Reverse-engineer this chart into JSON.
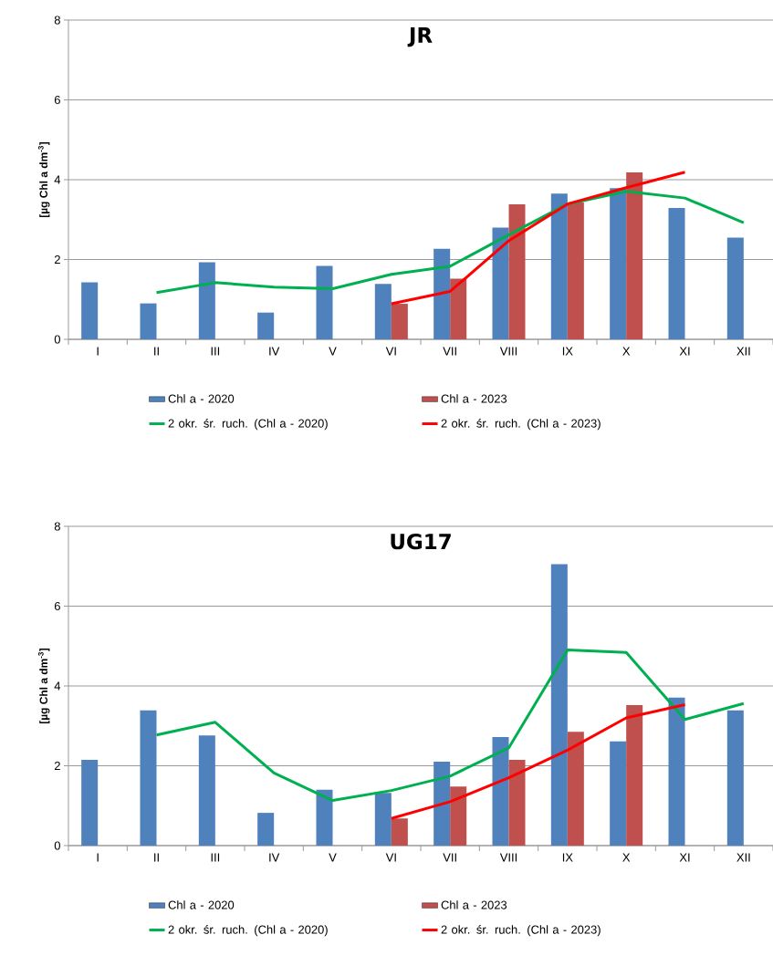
{
  "chart_data": [
    {
      "type": "bar",
      "title": "JR",
      "ylabel": "[µg Chl a dm$^{-3}$]",
      "categories": [
        "I",
        "II",
        "III",
        "IV",
        "V",
        "VI",
        "VII",
        "VIII",
        "IX",
        "X",
        "XI",
        "XII"
      ],
      "ylim": [
        0,
        8
      ],
      "yticks": [
        0,
        2,
        4,
        6,
        8
      ],
      "grid": "y",
      "legend": "bottom",
      "series": [
        {
          "name": "Chl a - 2020",
          "color": "#4f81bd",
          "values": [
            1.43,
            0.9,
            1.93,
            0.67,
            1.84,
            1.39,
            2.27,
            2.8,
            3.65,
            3.79,
            3.29,
            2.55
          ]
        },
        {
          "name": "Chl a - 2023",
          "color": "#c0504d",
          "values": [
            null,
            null,
            null,
            null,
            null,
            0.89,
            1.52,
            3.38,
            3.43,
            4.18,
            null,
            null
          ]
        },
        {
          "type": "line",
          "name": "2 okr. śr. ruch. (Chl a - 2020)",
          "color": "#00b050",
          "values": [
            null,
            1.17,
            1.42,
            1.31,
            1.27,
            1.63,
            1.83,
            2.62,
            3.39,
            3.71,
            3.54,
            2.92
          ]
        },
        {
          "type": "line",
          "name": "2 okr. śr. ruch. (Chl a - 2023)",
          "color": "#ff0000",
          "values": [
            null,
            null,
            null,
            null,
            null,
            0.89,
            1.2,
            2.47,
            3.39,
            3.8,
            4.19,
            null
          ]
        }
      ]
    },
    {
      "type": "bar",
      "title": "UG17",
      "ylabel": "[µg Chl a dm$^{-3}$]",
      "categories": [
        "I",
        "II",
        "III",
        "IV",
        "V",
        "VI",
        "VII",
        "VIII",
        "IX",
        "X",
        "XI",
        "XII"
      ],
      "ylim": [
        0,
        8
      ],
      "yticks": [
        0,
        2,
        4,
        6,
        8
      ],
      "grid": "y",
      "legend": "bottom",
      "series": [
        {
          "name": "Chl a - 2020",
          "color": "#4f81bd",
          "values": [
            2.15,
            3.39,
            2.76,
            0.82,
            1.4,
            1.32,
            2.1,
            2.72,
            7.05,
            2.61,
            3.71,
            3.39
          ]
        },
        {
          "name": "Chl a - 2023",
          "color": "#c0504d",
          "values": [
            null,
            null,
            null,
            null,
            null,
            0.68,
            1.48,
            2.15,
            2.85,
            3.52,
            null,
            null
          ]
        },
        {
          "type": "line",
          "name": "2 okr. śr. ruch. (Chl a - 2020)",
          "color": "#00b050",
          "values": [
            null,
            2.77,
            3.09,
            1.82,
            1.13,
            1.38,
            1.74,
            2.45,
            4.9,
            4.84,
            3.16,
            3.56
          ]
        },
        {
          "type": "line",
          "name": "2 okr. śr. ruch. (Chl a - 2023)",
          "color": "#ff0000",
          "values": [
            null,
            null,
            null,
            null,
            null,
            0.68,
            1.1,
            1.7,
            2.39,
            3.2,
            3.53,
            null
          ]
        }
      ]
    }
  ]
}
